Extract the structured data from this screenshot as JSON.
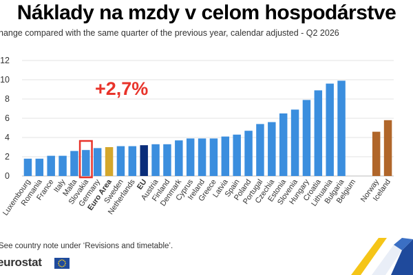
{
  "title": "Náklady na mzdy v celom hospodárstve",
  "subtitle": "hange compared with the same quarter of the previous year, calendar adjusted - Q2 2026",
  "annotation": "+2,7%",
  "footnote": "See country note under ‘Revisions and timetable’.",
  "brand": "eurostat",
  "colors": {
    "country": "#3b8ede",
    "euro_area": "#d4a72c",
    "eu": "#0a2d7a",
    "efta": "#b0662a",
    "highlight": "#e8332a"
  },
  "icons": {
    "flag": "eu-flag-icon",
    "corner": "eurostat-corner-graphic"
  },
  "chart_data": {
    "type": "bar",
    "ylim": [
      0,
      12
    ],
    "yticks": [
      "0",
      "2",
      "4",
      "6",
      "8",
      "10",
      "12"
    ],
    "grid": true,
    "highlighted": "Slovakia",
    "categories": [
      "Luxembourg",
      "Romania",
      "France",
      "Italy",
      "Malta",
      "Slovakia",
      "Germany",
      "Euro Area",
      "Sweden",
      "Netherlands",
      "EU",
      "Austria",
      "Finland",
      "Denmark",
      "Cyprus",
      "Ireland",
      "Greece",
      "Latvia",
      "Spain",
      "Poland",
      "Portugal",
      "Czechia",
      "Estonia",
      "Slovenia",
      "Hungary",
      "Croatia",
      "Lithuania",
      "Bulgaria",
      "Belgium",
      "",
      "Norway",
      "Iceland"
    ],
    "values": [
      1.8,
      1.8,
      2.1,
      2.1,
      2.6,
      2.7,
      2.9,
      3.0,
      3.1,
      3.1,
      3.2,
      3.3,
      3.3,
      3.7,
      3.9,
      3.9,
      3.9,
      4.1,
      4.3,
      4.7,
      5.4,
      5.6,
      6.5,
      6.9,
      7.9,
      8.9,
      9.6,
      9.9,
      null,
      null,
      4.6,
      5.8
    ],
    "groups": [
      "country",
      "country",
      "country",
      "country",
      "country",
      "country",
      "country",
      "euro_area",
      "country",
      "country",
      "eu",
      "country",
      "country",
      "country",
      "country",
      "country",
      "country",
      "country",
      "country",
      "country",
      "country",
      "country",
      "country",
      "country",
      "country",
      "country",
      "country",
      "country",
      "country",
      "gap",
      "efta",
      "efta"
    ]
  }
}
